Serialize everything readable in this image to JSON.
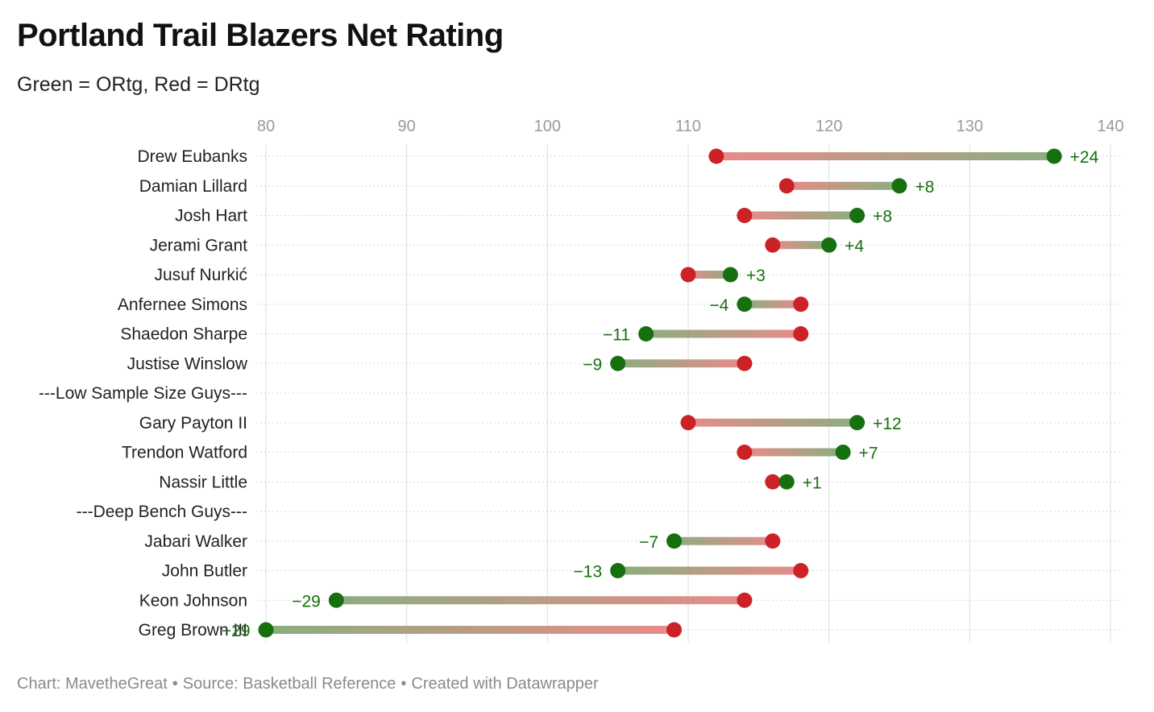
{
  "header": {
    "title": "Portland Trail Blazers Net Rating",
    "subtitle": "Green = ORtg, Red = DRtg"
  },
  "footer": {
    "credit": "Chart: MavetheGreat",
    "source": "Source: Basketball Reference",
    "tool": "Created with Datawrapper",
    "separator": "•"
  },
  "colors": {
    "ortg": "#16700f",
    "drtg": "#cc2227",
    "ortg_bar": "#8aae7f",
    "drtg_bar": "#e88b8b",
    "grid": "#dddddd",
    "axis_text": "#9a9a9a",
    "label_text": "#222222"
  },
  "chart_data": {
    "type": "dumbbell",
    "title": "Portland Trail Blazers Net Rating",
    "subtitle": "Green = ORtg, Red = DRtg",
    "xlim": [
      80,
      140
    ],
    "xticks": [
      80,
      90,
      100,
      110,
      120,
      130,
      140
    ],
    "legend": "subtitle",
    "grid": true,
    "series": [
      {
        "name": "ORtg",
        "color": "green"
      },
      {
        "name": "DRtg",
        "color": "red"
      }
    ],
    "rows": [
      {
        "label": "Drew Eubanks",
        "ortg": 136,
        "drtg": 112,
        "net_label": "+24"
      },
      {
        "label": "Damian Lillard",
        "ortg": 125,
        "drtg": 117,
        "net_label": "+8"
      },
      {
        "label": "Josh Hart",
        "ortg": 122,
        "drtg": 114,
        "net_label": "+8"
      },
      {
        "label": "Jerami Grant",
        "ortg": 120,
        "drtg": 116,
        "net_label": "+4"
      },
      {
        "label": "Jusuf Nurkić",
        "ortg": 113,
        "drtg": 110,
        "net_label": "+3"
      },
      {
        "label": "Anfernee Simons",
        "ortg": 114,
        "drtg": 118,
        "net_label": "−4"
      },
      {
        "label": "Shaedon Sharpe",
        "ortg": 107,
        "drtg": 118,
        "net_label": "−11"
      },
      {
        "label": "Justise Winslow",
        "ortg": 105,
        "drtg": 114,
        "net_label": "−9"
      },
      {
        "label": "---Low Sample Size Guys---",
        "ortg": null,
        "drtg": null,
        "net_label": ""
      },
      {
        "label": "Gary Payton II",
        "ortg": 122,
        "drtg": 110,
        "net_label": "+12"
      },
      {
        "label": "Trendon Watford",
        "ortg": 121,
        "drtg": 114,
        "net_label": "+7"
      },
      {
        "label": "Nassir Little",
        "ortg": 117,
        "drtg": 116,
        "net_label": "+1"
      },
      {
        "label": "---Deep Bench Guys---",
        "ortg": null,
        "drtg": null,
        "net_label": ""
      },
      {
        "label": "Jabari Walker",
        "ortg": 109,
        "drtg": 116,
        "net_label": "−7"
      },
      {
        "label": "John Butler",
        "ortg": 105,
        "drtg": 118,
        "net_label": "−13"
      },
      {
        "label": "Keon Johnson",
        "ortg": 85,
        "drtg": 114,
        "net_label": "−29"
      },
      {
        "label": "Greg Brown III",
        "ortg": 80,
        "drtg": 109,
        "net_label": "−29"
      }
    ]
  }
}
